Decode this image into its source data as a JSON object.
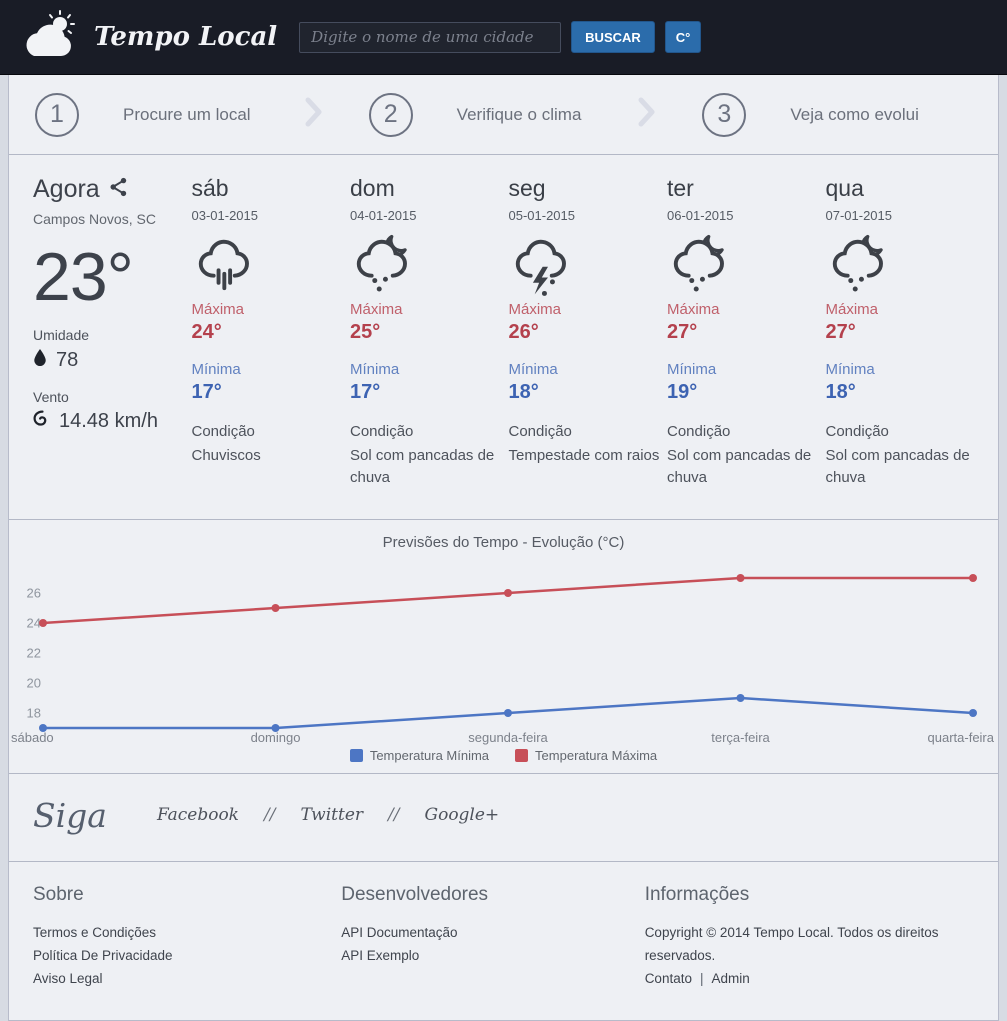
{
  "header": {
    "brand": "Tempo Local",
    "search_placeholder": "Digite o nome de uma cidade",
    "search_value": "",
    "search_button": "BUSCAR",
    "unit_button": "C°"
  },
  "steps": [
    {
      "number": "1",
      "label": "Procure um local"
    },
    {
      "number": "2",
      "label": "Verifique o clima"
    },
    {
      "number": "3",
      "label": "Veja como evolui"
    }
  ],
  "now": {
    "title": "Agora",
    "location": "Campos Novos, SC",
    "temperature": "23°",
    "humidity_label": "Umidade",
    "humidity": "78",
    "wind_label": "Vento",
    "wind": "14.48 km/h"
  },
  "forecast": {
    "max_label": "Máxima",
    "min_label": "Mínima",
    "condition_label": "Condição",
    "days": [
      {
        "day": "sáb",
        "date": "03-01-2015",
        "icon": "drizzle",
        "max": "24°",
        "min": "17°",
        "condition": "Chuviscos"
      },
      {
        "day": "dom",
        "date": "04-01-2015",
        "icon": "cloud-moon-rain",
        "max": "25°",
        "min": "17°",
        "condition": "Sol com pancadas de chuva"
      },
      {
        "day": "seg",
        "date": "05-01-2015",
        "icon": "thunderstorm",
        "max": "26°",
        "min": "18°",
        "condition": "Tempestade com raios"
      },
      {
        "day": "ter",
        "date": "06-01-2015",
        "icon": "cloud-moon-rain",
        "max": "27°",
        "min": "19°",
        "condition": "Sol com pancadas de chuva"
      },
      {
        "day": "qua",
        "date": "07-01-2015",
        "icon": "cloud-moon-rain",
        "max": "27°",
        "min": "18°",
        "condition": "Sol com pancadas de chuva"
      }
    ]
  },
  "chart_data": {
    "type": "line",
    "title": "Previsões do Tempo - Evolução (°C)",
    "categories": [
      "sábado",
      "domingo",
      "segunda-feira",
      "terça-feira",
      "quarta-feira"
    ],
    "series": [
      {
        "name": "Temperatura Mínima",
        "color": "#4d76c4",
        "values": [
          17,
          17,
          18,
          19,
          18
        ]
      },
      {
        "name": "Temperatura Máxima",
        "color": "#c74f58",
        "values": [
          24,
          25,
          26,
          27,
          27
        ]
      }
    ],
    "yticks": [
      18,
      20,
      22,
      24,
      26
    ],
    "ylim": [
      16.5,
      28
    ],
    "grid": false,
    "legend_position": "bottom"
  },
  "social": {
    "title": "Siga",
    "links": [
      "Facebook",
      "Twitter",
      "Google+"
    ],
    "separator": "//"
  },
  "footer": {
    "about": {
      "title": "Sobre",
      "links": [
        "Termos e Condições",
        "Política De Privacidade",
        "Aviso Legal"
      ]
    },
    "developers": {
      "title": "Desenvolvedores",
      "links": [
        "API Documentação",
        "API Exemplo"
      ]
    },
    "info": {
      "title": "Informações",
      "copyright": "Copyright © 2014 Tempo Local. Todos os direitos reservados.",
      "links": [
        "Contato",
        "Admin"
      ],
      "separator": "|"
    }
  },
  "colors": {
    "header_bg": "#191c26",
    "accent_blue": "#2b6cab",
    "max_red": "#c74f58",
    "min_blue": "#4d76c4",
    "panel_bg": "#eef0f4"
  }
}
